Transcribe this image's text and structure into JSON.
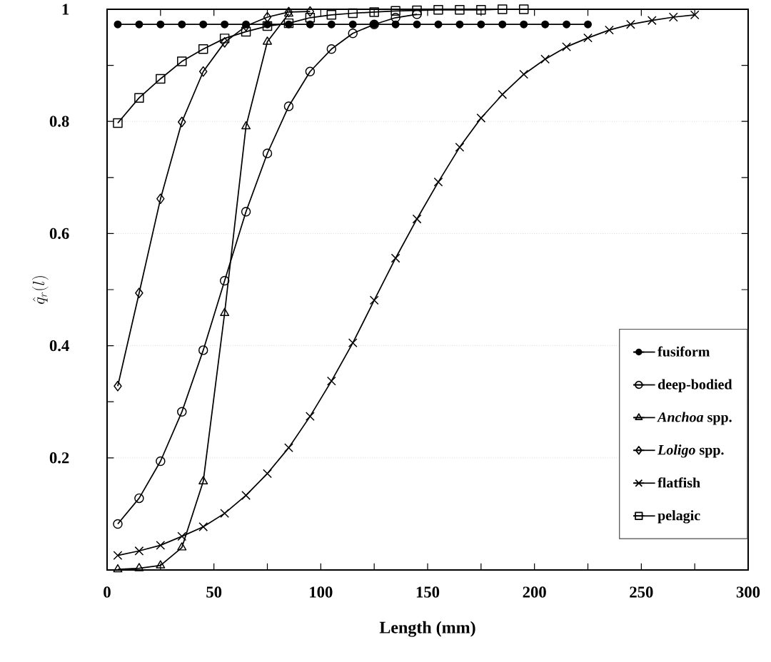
{
  "chart_data": {
    "type": "line",
    "xlabel": "Length (mm)",
    "ylabel": "\\hat{q}_r(l)",
    "xlim": [
      0,
      300
    ],
    "xticks": [
      0,
      50,
      100,
      150,
      200,
      250,
      300
    ],
    "ylim": [
      0,
      1
    ],
    "yticks": [
      0.2,
      0.4,
      0.6,
      0.8,
      1
    ],
    "grid": "y",
    "legend": "bottom right",
    "line_style": "solid",
    "series": [
      {
        "name": "fusiform",
        "color": "#000000",
        "marker": "circle",
        "x": [
          5,
          15,
          25,
          35,
          45,
          55,
          65,
          75,
          85,
          95,
          105,
          115,
          125,
          135,
          145,
          155,
          165,
          175,
          185,
          195,
          205,
          215,
          225
        ],
        "values": [
          0.973,
          0.973,
          0.973,
          0.973,
          0.973,
          0.973,
          0.973,
          0.973,
          0.973,
          0.973,
          0.973,
          0.973,
          0.973,
          0.973,
          0.973,
          0.973,
          0.973,
          0.973,
          0.973,
          0.973,
          0.973,
          0.973,
          0.973
        ]
      },
      {
        "name": "deep-bodied",
        "color": "#000000",
        "marker": "circle",
        "x": [
          5,
          15,
          25,
          35,
          45,
          55,
          65,
          75,
          85,
          95,
          105,
          115,
          125,
          135,
          145
        ],
        "values": [
          0.082,
          0.128,
          0.194,
          0.282,
          0.392,
          0.516,
          0.639,
          0.743,
          0.827,
          0.889,
          0.929,
          0.957,
          0.973,
          0.985,
          0.991
        ]
      },
      {
        "name": "*Anchoa* spp.",
        "color": "#000000",
        "marker": "triangle",
        "x": [
          5,
          15,
          25,
          35,
          45,
          55,
          65,
          75,
          85
        ],
        "values": [
          0.001,
          0.003,
          0.008,
          0.04,
          0.158,
          0.458,
          0.791,
          0.942,
          0.992
        ]
      },
      {
        "name": "*Loligo* spp.",
        "color": "#000000",
        "marker": "diamond",
        "x": [
          5,
          15,
          25,
          35,
          45,
          55,
          65,
          75,
          85,
          95
        ],
        "values": [
          0.328,
          0.494,
          0.662,
          0.799,
          0.889,
          0.941,
          0.97,
          0.986,
          0.995,
          0.996
        ]
      },
      {
        "name": "flatfish",
        "color": "#000000",
        "marker": "cross",
        "x": [
          5,
          15,
          25,
          35,
          45,
          55,
          65,
          75,
          85,
          95,
          105,
          115,
          125,
          135,
          145,
          155,
          165,
          175,
          185,
          195,
          205,
          215,
          225,
          235,
          245,
          255,
          265,
          275
        ],
        "values": [
          0.026,
          0.034,
          0.044,
          0.06,
          0.077,
          0.101,
          0.133,
          0.172,
          0.218,
          0.274,
          0.337,
          0.405,
          0.481,
          0.556,
          0.626,
          0.692,
          0.754,
          0.806,
          0.848,
          0.884,
          0.911,
          0.933,
          0.949,
          0.963,
          0.973,
          0.98,
          0.986,
          0.99
        ]
      },
      {
        "name": "pelagic",
        "color": "#000000",
        "marker": "square",
        "x": [
          5,
          15,
          25,
          35,
          45,
          55,
          65,
          75,
          85,
          95,
          105,
          115,
          125,
          135,
          145,
          155,
          165,
          175,
          185,
          195
        ],
        "values": [
          0.797,
          0.842,
          0.876,
          0.907,
          0.929,
          0.948,
          0.96,
          0.97,
          0.975,
          0.985,
          0.99,
          0.993,
          0.995,
          0.997,
          0.998,
          0.999,
          0.999,
          0.999,
          1.0,
          1.0
        ]
      }
    ]
  }
}
